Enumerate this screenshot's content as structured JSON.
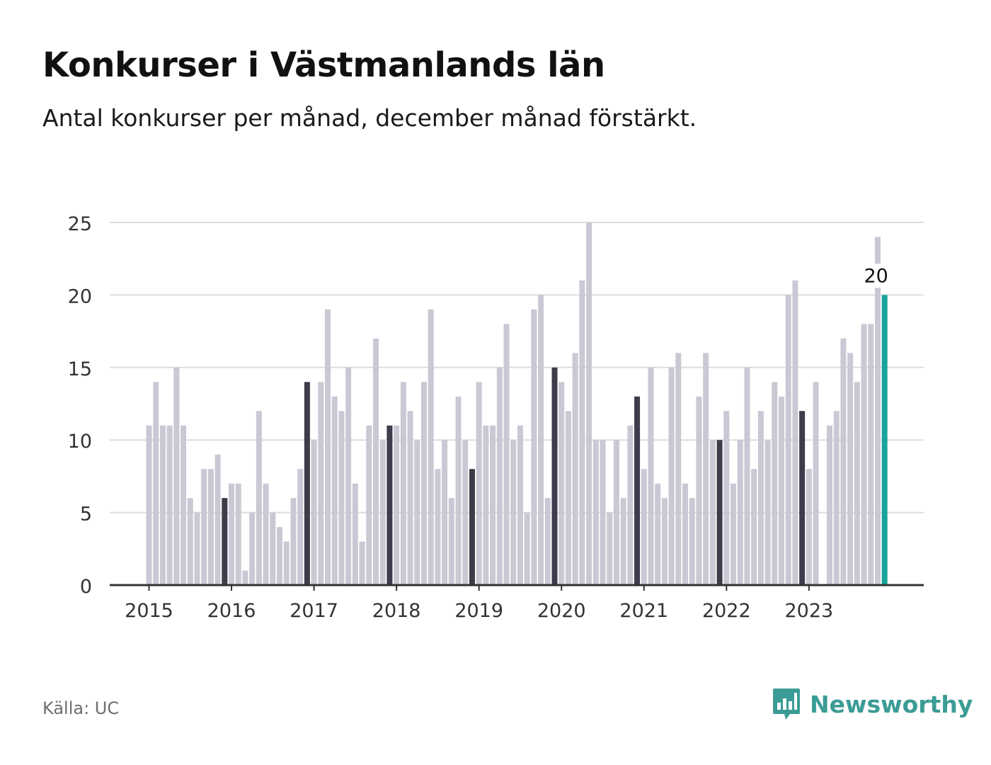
{
  "title": "Konkurser i Västmanlands län",
  "subtitle": "Antal konkurser per månad, december månad förstärkt.",
  "source": "Källa: UC",
  "brand": {
    "name": "Newsworthy",
    "icon": "bar-chart-speech-bubble-icon"
  },
  "colors": {
    "bar": "#c9c8d4",
    "december": "#3d3c4a",
    "latest": "#17a39a",
    "grid": "#dddddd",
    "axis": "#333333",
    "brand": "#3b9c95"
  },
  "chart_data": {
    "type": "bar",
    "title": "Konkurser i Västmanlands län",
    "subtitle": "Antal konkurser per månad, december månad förstärkt.",
    "ylim": [
      0,
      25
    ],
    "yticks": [
      0,
      5,
      10,
      15,
      20,
      25
    ],
    "xtick_labels": [
      "2015",
      "2016",
      "2017",
      "2018",
      "2019",
      "2020",
      "2021",
      "2022",
      "2023"
    ],
    "grid": true,
    "start": "2015-01",
    "end": "2023-12",
    "highlight": "december",
    "values": [
      11,
      14,
      11,
      11,
      15,
      11,
      6,
      5,
      8,
      8,
      9,
      6,
      7,
      7,
      1,
      5,
      12,
      7,
      5,
      4,
      3,
      6,
      8,
      14,
      10,
      14,
      19,
      13,
      12,
      15,
      7,
      3,
      11,
      17,
      10,
      11,
      11,
      14,
      12,
      10,
      14,
      19,
      8,
      10,
      6,
      13,
      10,
      8,
      14,
      11,
      11,
      15,
      18,
      10,
      11,
      5,
      19,
      20,
      6,
      15,
      14,
      12,
      16,
      21,
      25,
      10,
      10,
      5,
      10,
      6,
      11,
      13,
      8,
      15,
      7,
      6,
      15,
      16,
      7,
      6,
      13,
      16,
      10,
      10,
      12,
      7,
      10,
      15,
      8,
      12,
      10,
      14,
      13,
      20,
      21,
      12,
      8,
      14,
      0,
      11,
      12,
      17,
      16,
      14,
      18,
      18,
      24,
      20
    ],
    "latest_label": "20"
  }
}
